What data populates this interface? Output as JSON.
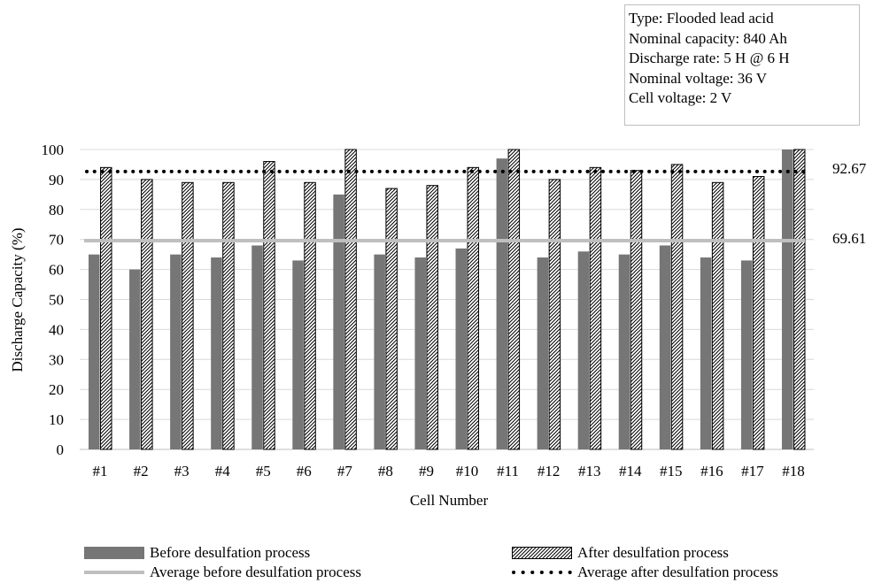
{
  "info_box": {
    "lines": [
      "Type: Flooded lead acid",
      "Nominal capacity: 840 Ah",
      "Discharge rate: 5 H @ 6 H",
      "Nominal voltage: 36  V",
      "Cell voltage: 2 V"
    ]
  },
  "colors": {
    "before_bar": "#767676",
    "after_bar_hatch": "#000000",
    "average_before_line": "#bfbfbf",
    "average_after_line": "#000000",
    "gridline": "#d9d9d9"
  },
  "chart_data": {
    "type": "bar",
    "xlabel": "Cell Number",
    "ylabel": "Discharge Capacity (%)",
    "ylim": [
      0,
      100
    ],
    "y_ticks": [
      "0",
      "10",
      "20",
      "30",
      "40",
      "50",
      "60",
      "70",
      "80",
      "90",
      "100"
    ],
    "grid": "horizontal",
    "legend_position": "bottom",
    "categories": [
      "#1",
      "#2",
      "#3",
      "#4",
      "#5",
      "#6",
      "#7",
      "#8",
      "#9",
      "#10",
      "#11",
      "#12",
      "#13",
      "#14",
      "#15",
      "#16",
      "#17",
      "#18"
    ],
    "series": [
      {
        "name": "Before desulfation process",
        "kind": "bar",
        "fill": "solid",
        "values": [
          65,
          60,
          65,
          64,
          68,
          63,
          85,
          65,
          64,
          67,
          97,
          64,
          66,
          65,
          68,
          64,
          63,
          100
        ]
      },
      {
        "name": "After desulfation process",
        "kind": "bar",
        "fill": "hatched",
        "values": [
          94,
          90,
          89,
          89,
          96,
          89,
          100,
          87,
          88,
          94,
          100,
          90,
          94,
          93,
          95,
          89,
          91,
          100
        ]
      },
      {
        "name": "Average before desulfation process",
        "kind": "line",
        "style": "solid",
        "value": 69.61,
        "label": "69.61"
      },
      {
        "name": "Average after desulfation process",
        "kind": "line",
        "style": "dotted",
        "value": 92.67,
        "label": "92.67"
      }
    ]
  }
}
